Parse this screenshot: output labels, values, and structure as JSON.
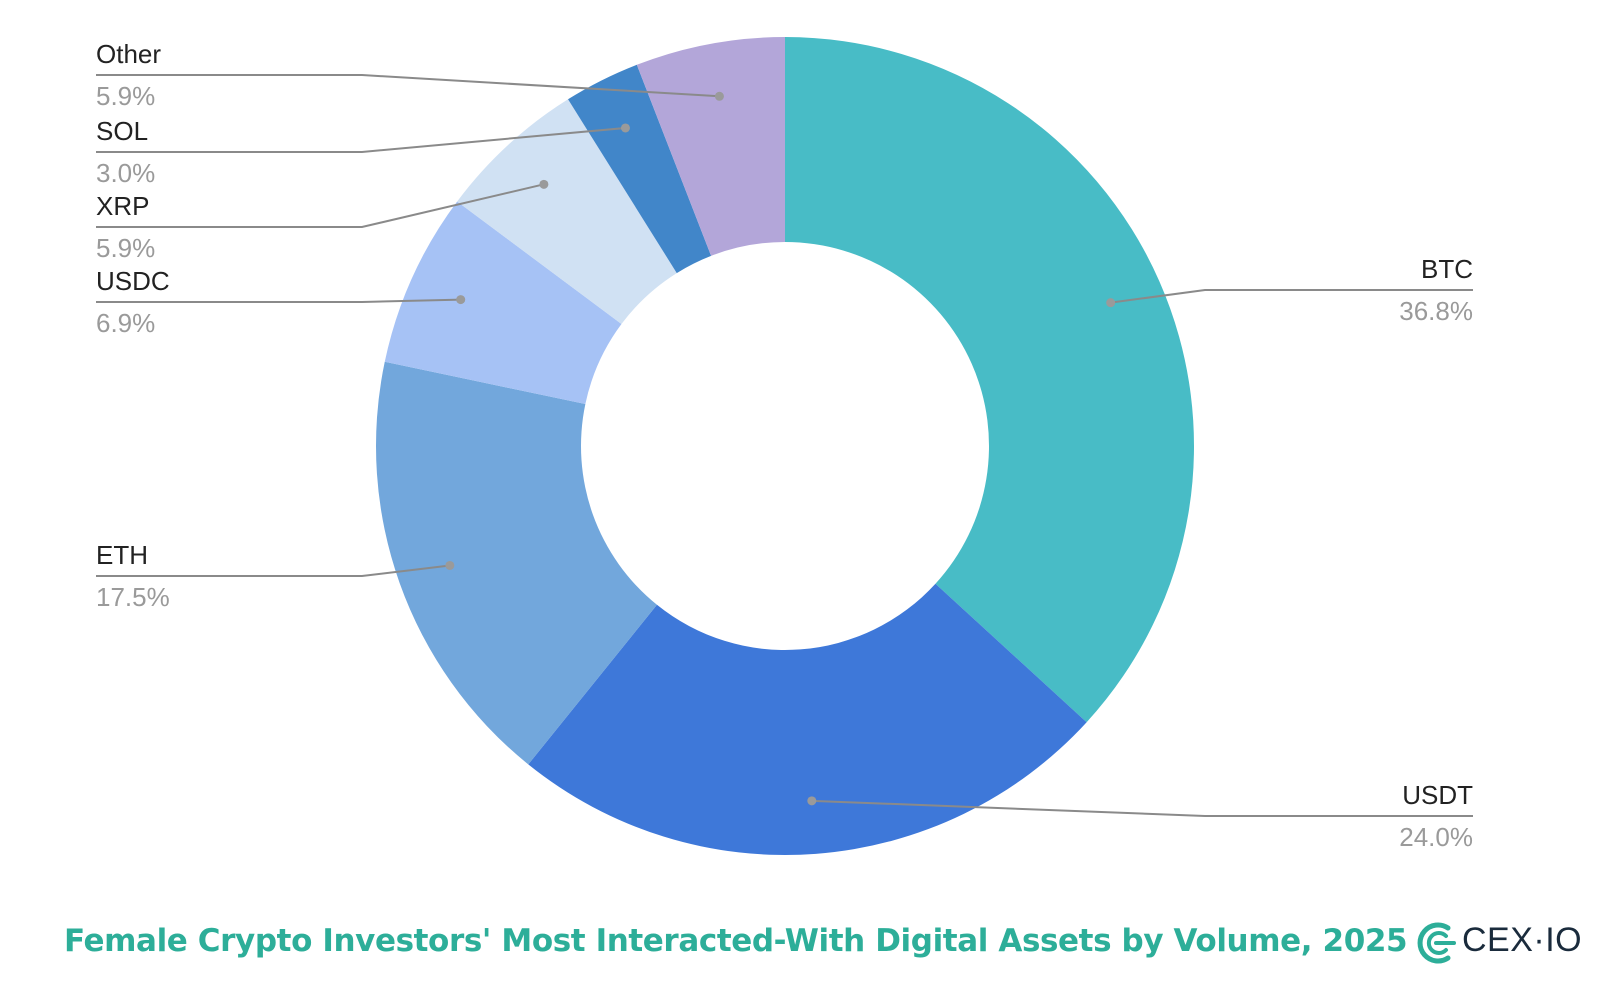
{
  "colors": {
    "title": "#2dae99",
    "brand_mark": "#2dae99",
    "brand_text": "#1a2b3c",
    "label_name": "#222222",
    "label_pct": "#9a9a9a"
  },
  "chart_data": {
    "type": "pie",
    "variant": "donut",
    "title": "Female Crypto Investors' Most Interacted-With Digital Assets by Volume, 2025",
    "series": [
      {
        "name": "BTC",
        "value": 36.8,
        "label": "36.8%",
        "color": "#48bcc6",
        "label_side": "right"
      },
      {
        "name": "USDT",
        "value": 24.0,
        "label": "24.0%",
        "color": "#3e78d9",
        "label_side": "right"
      },
      {
        "name": "ETH",
        "value": 17.5,
        "label": "17.5%",
        "color": "#72a7dc",
        "label_side": "left"
      },
      {
        "name": "USDC",
        "value": 6.9,
        "label": "6.9%",
        "color": "#a6c2f5",
        "label_side": "left"
      },
      {
        "name": "XRP",
        "value": 5.9,
        "label": "5.9%",
        "color": "#d0e1f3",
        "label_side": "left"
      },
      {
        "name": "SOL",
        "value": 3.0,
        "label": "3.0%",
        "color": "#4186c9",
        "label_side": "left"
      },
      {
        "name": "Other",
        "value": 5.9,
        "label": "5.9%",
        "color": "#b3a6d9",
        "label_side": "left"
      }
    ]
  },
  "brand": {
    "name": "CEX·IO",
    "icon": "cex-io-logo-icon"
  }
}
